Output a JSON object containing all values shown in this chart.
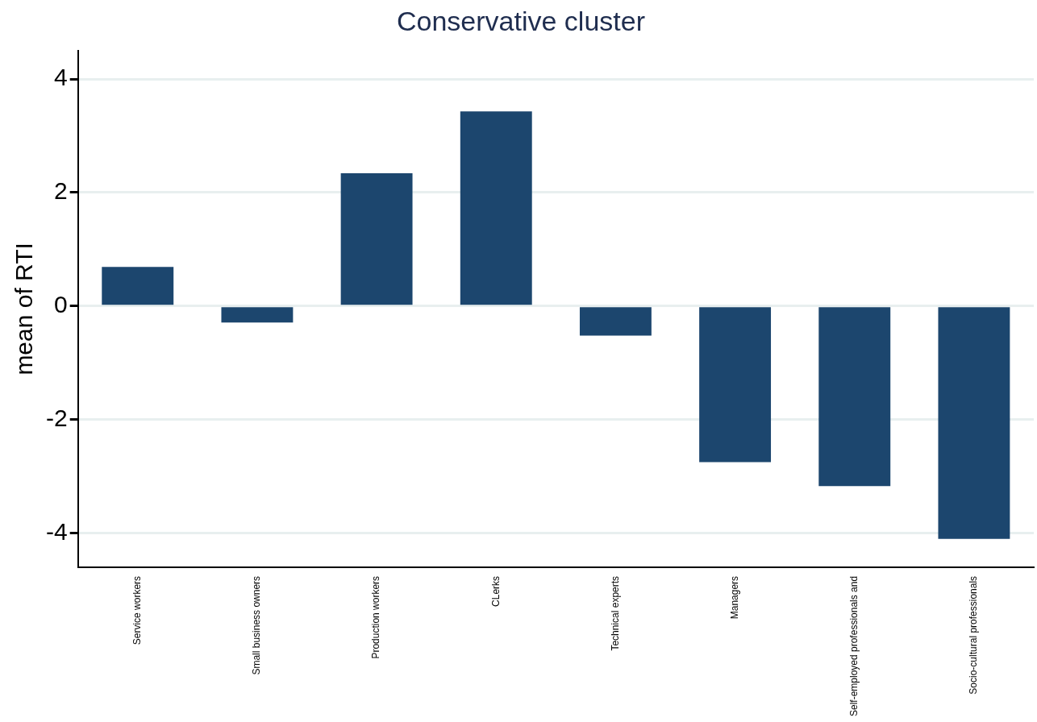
{
  "chart_data": {
    "type": "bar",
    "title": "Conservative cluster",
    "ylabel": "mean of RTI",
    "categories": [
      "Service workers",
      "Small business owners",
      "Production workers",
      "CLerks",
      "Technical experts",
      "Managers",
      "Self-employed professionals and",
      "Socio-cultural professionals"
    ],
    "values": [
      0.69,
      -0.29,
      2.34,
      3.43,
      -0.52,
      -2.75,
      -3.17,
      -4.1
    ],
    "color": "#1c466e",
    "ylim": [
      -4.6,
      4.5
    ],
    "yticks": [
      -4,
      -2,
      0,
      2,
      4
    ],
    "grid": "y"
  }
}
